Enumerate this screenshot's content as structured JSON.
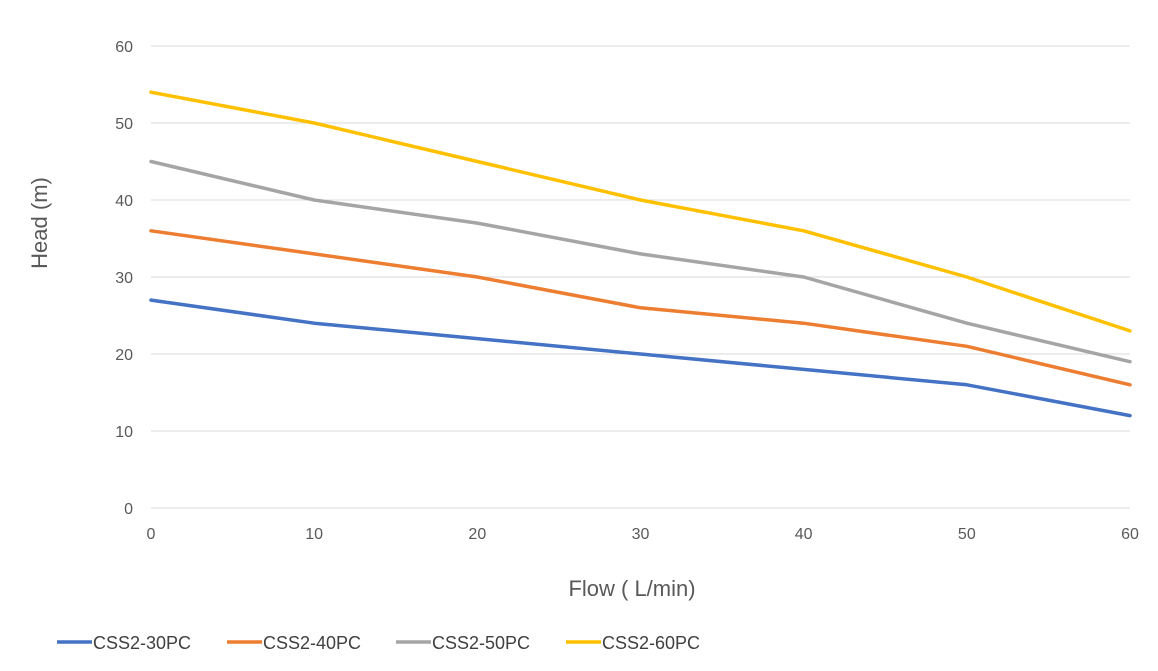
{
  "chart_data": {
    "type": "line",
    "title": "",
    "xlabel": "Flow ( L/min)",
    "ylabel": "Head (m)",
    "x": [
      0,
      10,
      20,
      30,
      40,
      50,
      60
    ],
    "xlim": [
      0,
      60
    ],
    "ylim": [
      0,
      60
    ],
    "xticks": [
      "0",
      "10",
      "20",
      "30",
      "40",
      "50",
      "60"
    ],
    "yticks": [
      "0",
      "10",
      "20",
      "30",
      "40",
      "50",
      "60"
    ],
    "grid": "horizontal",
    "legend": "bottom",
    "series": [
      {
        "name": "CSS2-30PC",
        "color": "#4472C4",
        "values": [
          27,
          24,
          22,
          20,
          18,
          16,
          12
        ]
      },
      {
        "name": "CSS2-40PC",
        "color": "#ED7D31",
        "values": [
          36,
          33,
          30,
          26,
          24,
          21,
          16
        ]
      },
      {
        "name": "CSS2-50PC",
        "color": "#A5A5A5",
        "values": [
          45,
          40,
          37,
          33,
          30,
          24,
          19
        ]
      },
      {
        "name": "CSS2-60PC",
        "color": "#FFC000",
        "values": [
          54,
          50,
          45,
          40,
          36,
          30,
          23
        ]
      }
    ],
    "gridline_color": "#D9D9D9"
  }
}
